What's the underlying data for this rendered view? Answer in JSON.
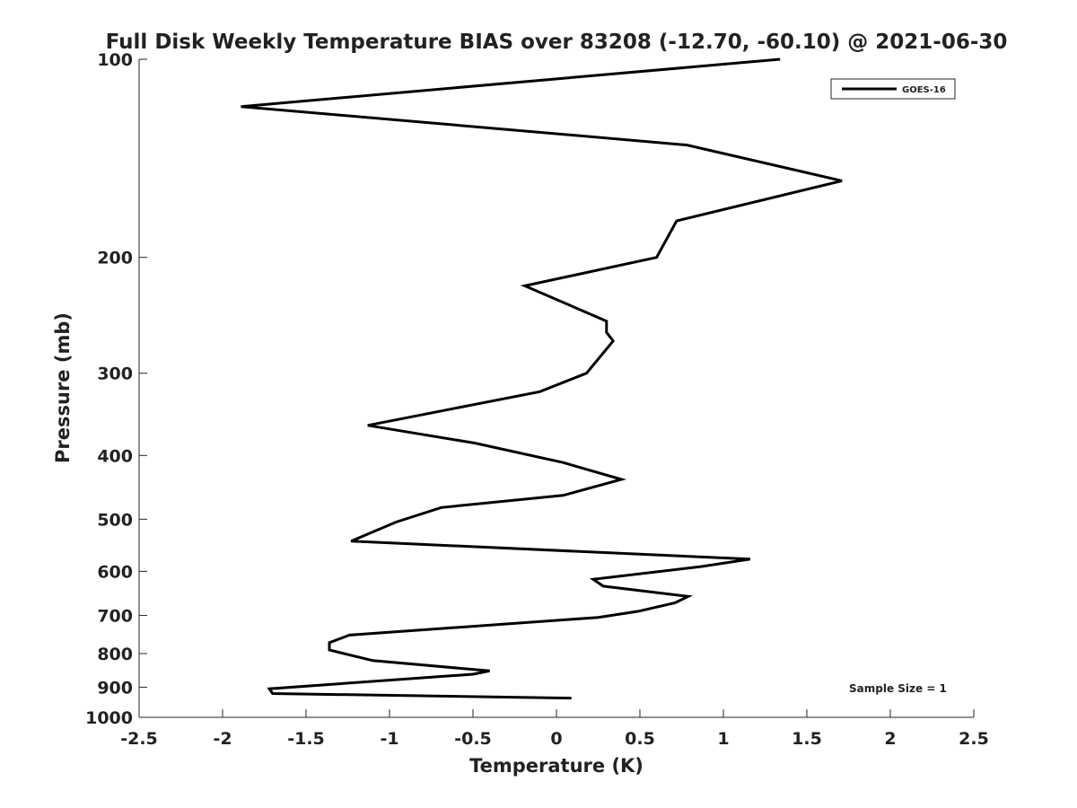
{
  "chart_data": {
    "type": "line",
    "title": "Full Disk Weekly Temperature BIAS over 83208 (-12.70, -60.10) @ 2021-06-30",
    "xlabel": "Temperature (K)",
    "ylabel": "Pressure (mb)",
    "xlim": [
      -2.5,
      2.5
    ],
    "ylim": [
      1000,
      100
    ],
    "yscale": "log",
    "y_reversed": true,
    "xticks": [
      -2.5,
      -2,
      -1.5,
      -1,
      -0.5,
      0,
      0.5,
      1,
      1.5,
      2,
      2.5
    ],
    "xtick_labels": [
      "-2.5",
      "-2",
      "-1.5",
      "-1",
      "-0.5",
      "0",
      "0.5",
      "1",
      "1.5",
      "2",
      "2.5"
    ],
    "yticks": [
      100,
      200,
      300,
      400,
      500,
      600,
      700,
      800,
      900,
      1000
    ],
    "ytick_labels": [
      "100",
      "200",
      "300",
      "400",
      "500",
      "600",
      "700",
      "800",
      "900",
      "1000"
    ],
    "grid": false,
    "legend_position": "top-right",
    "annotation": "Sample Size = 1",
    "line_color": "#000000",
    "series": [
      {
        "name": "GOES-16",
        "x": [
          1.34,
          -1.89,
          0.78,
          1.71,
          0.72,
          0.6,
          -0.19,
          0.3,
          0.3,
          0.34,
          0.18,
          -0.1,
          -1.13,
          -0.49,
          0.04,
          0.39,
          0.04,
          -0.69,
          -0.96,
          -1.23,
          1.16,
          0.87,
          0.22,
          0.28,
          0.79,
          0.71,
          0.49,
          0.25,
          -1.24,
          -1.36,
          -1.36,
          -1.1,
          -0.4,
          -0.5,
          -1.72,
          -1.7,
          0.09
        ],
        "y": [
          100,
          118,
          135,
          153,
          176,
          200,
          221,
          250,
          260,
          268,
          300,
          320,
          360,
          383,
          410,
          435,
          460,
          480,
          505,
          540,
          575,
          590,
          617,
          632,
          655,
          670,
          690,
          705,
          750,
          770,
          790,
          820,
          850,
          860,
          905,
          920,
          935
        ]
      }
    ]
  }
}
